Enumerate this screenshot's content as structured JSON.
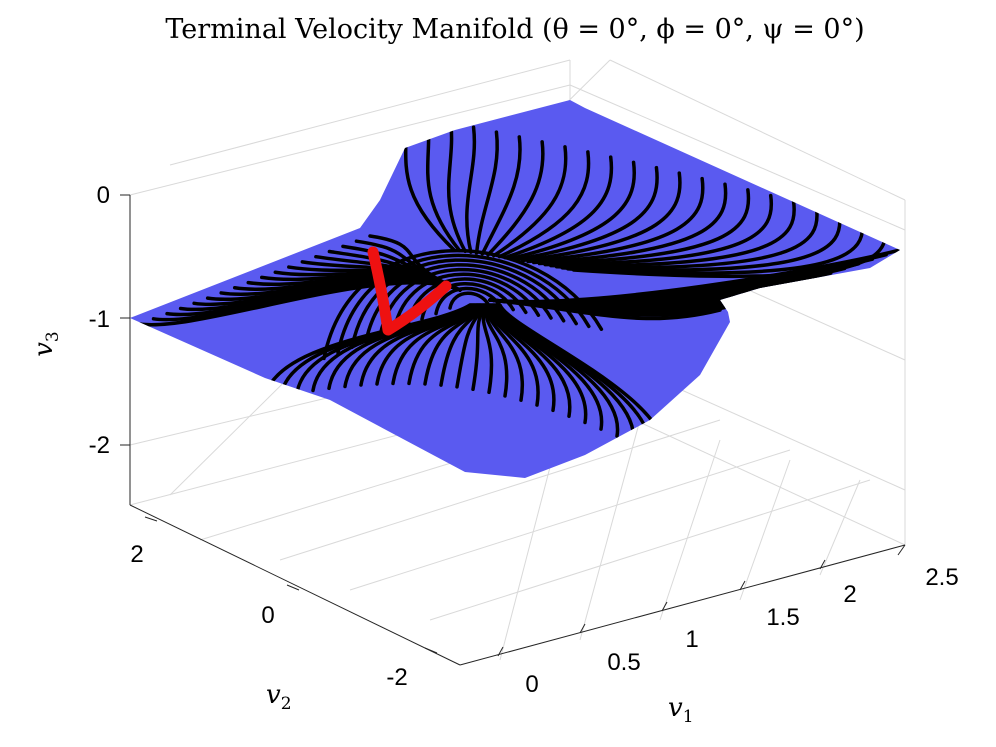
{
  "chart_data": {
    "type": "surface3d",
    "title": "Terminal Velocity Manifold (θ = 0°, ϕ = 0°, ψ = 0°)",
    "xlabel": "v",
    "xlabel_sub": "1",
    "ylabel": "v",
    "ylabel_sub": "2",
    "zlabel": "v",
    "zlabel_sub": "3",
    "x_ticks": [
      0,
      0.5,
      1,
      1.5,
      2,
      2.5
    ],
    "x_tick_labels": [
      "0",
      "0.5",
      "1",
      "1.5",
      "2",
      "2.5"
    ],
    "y_ticks": [
      2,
      0,
      -2
    ],
    "y_tick_labels": [
      "2",
      "0",
      "-2"
    ],
    "z_ticks": [
      0,
      -1,
      -2
    ],
    "z_tick_labels": [
      "0",
      "-1",
      "-2"
    ],
    "xlim": [
      -0.3,
      2.7
    ],
    "ylim": [
      -2.6,
      2.6
    ],
    "zlim": [
      -2.5,
      0.2
    ],
    "grid": true,
    "surface_color": "#5a5af0",
    "streamline_color": "#000000",
    "highlight_color": "#ee1111",
    "surface_corners": [
      {
        "v1": -0.3,
        "v2": 2.6,
        "v3": -1.0
      },
      {
        "v1": 2.7,
        "v2": 2.6,
        "v3": 0.0
      },
      {
        "v1": 2.7,
        "v2": -2.6,
        "v3": -0.5
      },
      {
        "v1": -0.3,
        "v2": -2.6,
        "v3": -2.0
      }
    ]
  }
}
